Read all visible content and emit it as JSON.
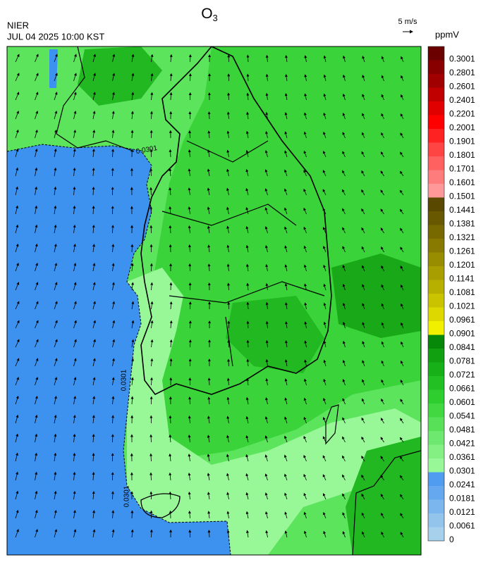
{
  "header": {
    "title": "O",
    "title_subscript": "3",
    "source": "NIER",
    "datetime": "JUL 04 2025 10:00 KST",
    "wind_scale": "5 m/s",
    "unit": "ppmV"
  },
  "colorbar": {
    "ticks": [
      0,
      0.0061,
      0.0121,
      0.0181,
      0.0241,
      0.0301,
      0.0361,
      0.0421,
      0.0481,
      0.0541,
      0.0601,
      0.0661,
      0.0721,
      0.0781,
      0.0841,
      0.0901,
      0.0961,
      0.1021,
      0.1081,
      0.1141,
      0.1201,
      0.1261,
      0.1321,
      0.1381,
      0.1441,
      0.1501,
      0.1601,
      0.1701,
      0.1801,
      0.1901,
      0.2001,
      0.2201,
      0.2401,
      0.2601,
      0.2801,
      0.3001
    ],
    "colors": [
      "#a6d0ec",
      "#92c4ec",
      "#7cb6ee",
      "#66a8f0",
      "#509cf0",
      "#98f898",
      "#84f084",
      "#6ee86e",
      "#58e058",
      "#42d842",
      "#2ece2e",
      "#22c022",
      "#18b018",
      "#10a010",
      "#088808",
      "#f0f000",
      "#dcd800",
      "#cac400",
      "#b8b000",
      "#a89e00",
      "#988c00",
      "#887a00",
      "#786800",
      "#685800",
      "#584800",
      "#ff9898",
      "#ff7c7c",
      "#ff6060",
      "#ff4444",
      "#ff2222",
      "#ff0000",
      "#e00000",
      "#c00000",
      "#a00000",
      "#880000",
      "#6a0000"
    ]
  },
  "map": {
    "contour_labels": [
      "0.0301",
      "0.0301",
      "0.0301"
    ]
  }
}
